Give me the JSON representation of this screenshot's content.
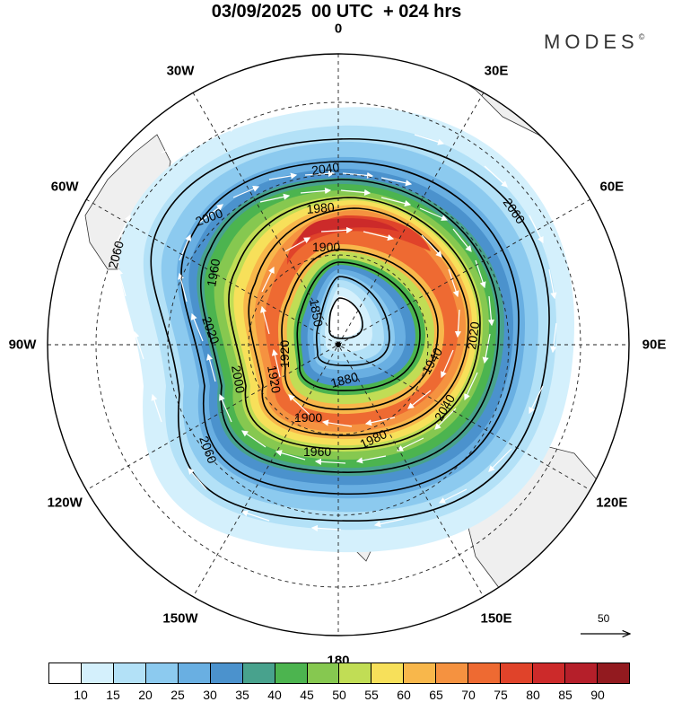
{
  "title": "03/09/2025  00 UTC  + 024 hrs",
  "brand": {
    "name": "MODES",
    "mark": "©"
  },
  "longitude_labels": [
    {
      "text": "0",
      "angle": 0
    },
    {
      "text": "30E",
      "angle": 30
    },
    {
      "text": "60E",
      "angle": 60
    },
    {
      "text": "90E",
      "angle": 90
    },
    {
      "text": "120E",
      "angle": 120
    },
    {
      "text": "150E",
      "angle": 150
    },
    {
      "text": "180",
      "angle": 180
    },
    {
      "text": "150W",
      "angle": 210
    },
    {
      "text": "120W",
      "angle": 240
    },
    {
      "text": "90W",
      "angle": 270
    },
    {
      "text": "60W",
      "angle": 300
    },
    {
      "text": "30W",
      "angle": 330
    }
  ],
  "contour_labels": [
    "2060",
    "2040",
    "2000",
    "1980",
    "1960",
    "1900",
    "1850",
    "1940",
    "2020",
    "1920",
    "2060",
    "2040",
    "2000",
    "1980",
    "1960",
    "1900",
    "1920",
    "1880",
    "2020",
    "2060"
  ],
  "reference_vector": {
    "value": "50"
  },
  "colorbar": {
    "colors": [
      "#ffffff",
      "#d4f0fc",
      "#b3e1f7",
      "#8ccaef",
      "#69afe2",
      "#4b92cd",
      "#48a28d",
      "#4cb44f",
      "#86c850",
      "#c1dd55",
      "#f7e05a",
      "#f8b74b",
      "#f59240",
      "#ee6a32",
      "#e0432a",
      "#cc2a2a",
      "#b51f2a",
      "#921a1f"
    ],
    "labels": [
      "10",
      "15",
      "20",
      "25",
      "30",
      "35",
      "40",
      "45",
      "50",
      "55",
      "60",
      "65",
      "70",
      "75",
      "80",
      "85",
      "90"
    ]
  }
}
